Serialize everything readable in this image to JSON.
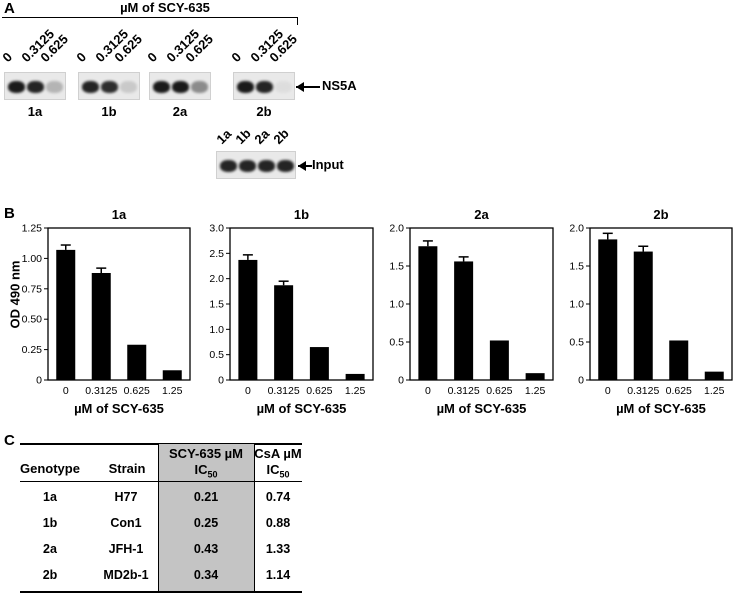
{
  "panel_a": {
    "letter": "A",
    "concentration_header": "µM of SCY-635",
    "lane_labels": [
      "0",
      "0.3125",
      "0.625"
    ],
    "blots": [
      {
        "label": "1a",
        "bands": [
          1.0,
          0.95,
          0.25
        ]
      },
      {
        "label": "1b",
        "bands": [
          0.95,
          0.9,
          0.15
        ]
      },
      {
        "label": "2a",
        "bands": [
          1.0,
          1.0,
          0.45
        ]
      },
      {
        "label": "2b",
        "bands": [
          1.0,
          0.95,
          0.05
        ]
      }
    ],
    "ns5a_label": "NS5A",
    "input_lane_labels": [
      "1a",
      "1b",
      "2a",
      "2b"
    ],
    "input_label": "Input"
  },
  "panel_b": {
    "letter": "B",
    "ylabel": "OD 490 nm",
    "xlabel": "µM of SCY-635"
  },
  "chart_data": [
    {
      "type": "bar",
      "title": "1a",
      "categories": [
        "0",
        "0.3125",
        "0.625",
        "1.25"
      ],
      "values": [
        1.07,
        0.88,
        0.29,
        0.08
      ],
      "errors": [
        0.04,
        0.04,
        0,
        0
      ],
      "ylim": [
        0,
        1.25
      ],
      "yticks": [
        "0",
        "0.25",
        "0.50",
        "0.75",
        "1.00",
        "1.25"
      ],
      "xlabel": "µM of SCY-635",
      "ylabel": "OD 490 nm"
    },
    {
      "type": "bar",
      "title": "1b",
      "categories": [
        "0",
        "0.3125",
        "0.625",
        "1.25"
      ],
      "values": [
        2.37,
        1.87,
        0.65,
        0.12
      ],
      "errors": [
        0.1,
        0.08,
        0,
        0
      ],
      "ylim": [
        0,
        3.0
      ],
      "yticks": [
        "0",
        "0.5",
        "1.0",
        "1.5",
        "2.0",
        "2.5",
        "3.0"
      ],
      "xlabel": "µM of SCY-635",
      "ylabel": ""
    },
    {
      "type": "bar",
      "title": "2a",
      "categories": [
        "0",
        "0.3125",
        "0.625",
        "1.25"
      ],
      "values": [
        1.76,
        1.56,
        0.52,
        0.09
      ],
      "errors": [
        0.07,
        0.06,
        0,
        0
      ],
      "ylim": [
        0,
        2.0
      ],
      "yticks": [
        "0",
        "0.5",
        "1.0",
        "1.5",
        "2.0"
      ],
      "xlabel": "µM of SCY-635",
      "ylabel": ""
    },
    {
      "type": "bar",
      "title": "2b",
      "categories": [
        "0",
        "0.3125",
        "0.625",
        "1.25"
      ],
      "values": [
        1.85,
        1.69,
        0.52,
        0.11
      ],
      "errors": [
        0.08,
        0.07,
        0,
        0
      ],
      "ylim": [
        0,
        2.0
      ],
      "yticks": [
        "0",
        "0.5",
        "1.0",
        "1.5",
        "2.0"
      ],
      "xlabel": "µM of SCY-635",
      "ylabel": ""
    }
  ],
  "panel_c": {
    "letter": "C",
    "headers": {
      "genotype": "Genotype",
      "strain": "Strain",
      "scy_line1": "SCY-635 µM",
      "scy_line2": "IC",
      "scy_sub": "50",
      "csa_line1": "CsA µM",
      "csa_line2": "IC",
      "csa_sub": "50"
    },
    "rows": [
      {
        "genotype": "1a",
        "strain": "H77",
        "scy": "0.21",
        "csa": "0.74"
      },
      {
        "genotype": "1b",
        "strain": "Con1",
        "scy": "0.25",
        "csa": "0.88"
      },
      {
        "genotype": "2a",
        "strain": "JFH-1",
        "scy": "0.43",
        "csa": "1.33"
      },
      {
        "genotype": "2b",
        "strain": "MD2b-1",
        "scy": "0.34",
        "csa": "1.14"
      }
    ],
    "highlight_color": "#c4c4c4"
  }
}
